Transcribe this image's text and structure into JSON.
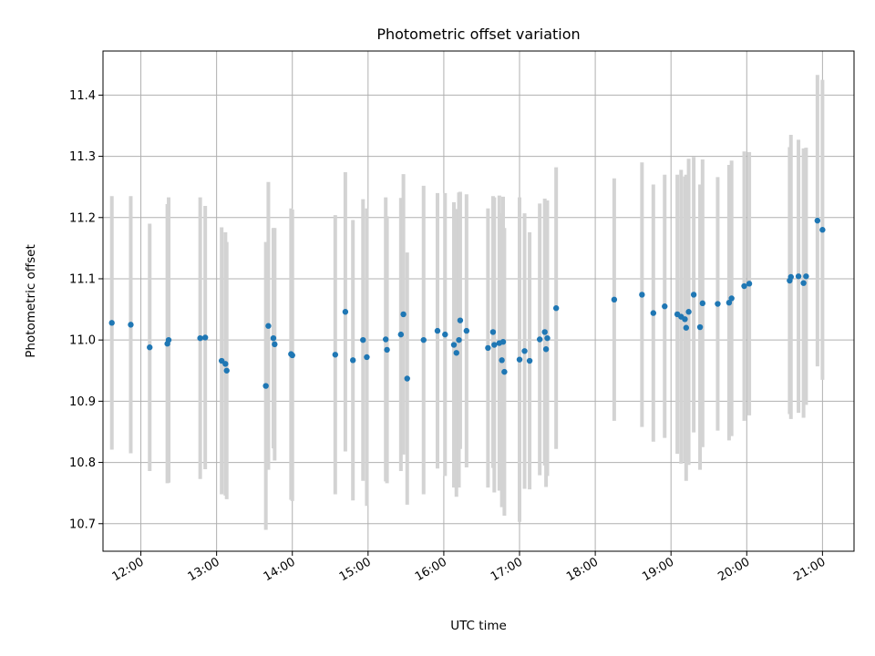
{
  "chart_data": {
    "type": "scatter",
    "title": "Photometric offset variation",
    "xlabel": "UTC time",
    "ylabel": "Photometric offset",
    "xlim": [
      "11:30",
      "21:25"
    ],
    "ylim": [
      10.655,
      11.472
    ],
    "grid": true,
    "x_ticks": [
      "12:00",
      "13:00",
      "14:00",
      "15:00",
      "16:00",
      "17:00",
      "18:00",
      "19:00",
      "20:00",
      "21:00"
    ],
    "y_ticks": [
      "10.7",
      "10.8",
      "10.9",
      "11.0",
      "11.1",
      "11.2",
      "11.3",
      "11.4"
    ],
    "colors": {
      "point": "#1f77b4",
      "errorbar": "#d3d3d3",
      "grid": "#b0b0b0"
    },
    "series": [
      {
        "x": [
          "11:37",
          "11:52",
          "12:07",
          "12:21",
          "12:22",
          "12:47",
          "12:51",
          "13:04",
          "13:07",
          "13:08",
          "13:39",
          "13:41",
          "13:45",
          "13:46",
          "13:59",
          "14:00",
          "14:34",
          "14:42",
          "14:48",
          "14:56",
          "14:59",
          "15:14",
          "15:15",
          "15:26",
          "15:28",
          "15:31",
          "15:44",
          "15:55",
          "16:01",
          "16:08",
          "16:10",
          "16:12",
          "16:13",
          "16:18",
          "16:35",
          "16:39",
          "16:40",
          "16:44",
          "16:46",
          "16:47",
          "16:48",
          "17:00",
          "17:04",
          "17:08",
          "17:16",
          "17:20",
          "17:21",
          "17:22",
          "17:29",
          "18:15",
          "18:37",
          "18:46",
          "18:55",
          "19:05",
          "19:08",
          "19:11",
          "19:12",
          "19:14",
          "19:18",
          "19:23",
          "19:25",
          "19:37",
          "19:46",
          "19:48",
          "19:58",
          "20:02",
          "20:34",
          "20:35",
          "20:41",
          "20:45",
          "20:47",
          "20:56",
          "21:00"
        ],
        "y": [
          11.028,
          11.025,
          10.988,
          10.994,
          11.0,
          11.003,
          11.004,
          10.966,
          10.961,
          10.95,
          10.925,
          11.023,
          11.003,
          10.993,
          10.977,
          10.975,
          10.976,
          11.046,
          10.967,
          11.0,
          10.972,
          11.001,
          10.984,
          11.009,
          11.042,
          10.937,
          11.0,
          11.015,
          11.009,
          10.992,
          10.979,
          11.0,
          11.032,
          11.015,
          10.987,
          11.013,
          10.992,
          10.995,
          10.967,
          10.997,
          10.948,
          10.968,
          10.982,
          10.966,
          11.001,
          11.013,
          10.985,
          11.003,
          11.052,
          11.066,
          11.074,
          11.044,
          11.055,
          11.042,
          11.038,
          11.034,
          11.02,
          11.046,
          11.074,
          11.021,
          11.06,
          11.059,
          11.061,
          11.068,
          11.088,
          11.092,
          11.097,
          11.103,
          11.104,
          11.093,
          11.104,
          11.195,
          11.18
        ],
        "err": [
          0.207,
          0.21,
          0.202,
          0.228,
          0.233,
          0.23,
          0.215,
          0.218,
          0.215,
          0.21,
          0.235,
          0.235,
          0.18,
          0.19,
          0.238,
          0.238,
          0.228,
          0.228,
          0.229,
          0.23,
          0.243,
          0.232,
          0.218,
          0.223,
          0.229,
          0.206,
          0.252,
          0.225,
          0.231,
          0.233,
          0.235,
          0.241,
          0.21,
          0.223,
          0.228,
          0.222,
          0.241,
          0.241,
          0.24,
          0.237,
          0.235,
          0.265,
          0.225,
          0.21,
          0.222,
          0.218,
          0.225,
          0.225,
          0.23,
          0.198,
          0.216,
          0.21,
          0.215,
          0.228,
          0.24,
          0.233,
          0.25,
          0.25,
          0.225,
          0.233,
          0.235,
          0.207,
          0.225,
          0.225,
          0.22,
          0.215,
          0.218,
          0.232,
          0.223,
          0.22,
          0.21,
          0.238,
          0.245
        ]
      }
    ]
  }
}
